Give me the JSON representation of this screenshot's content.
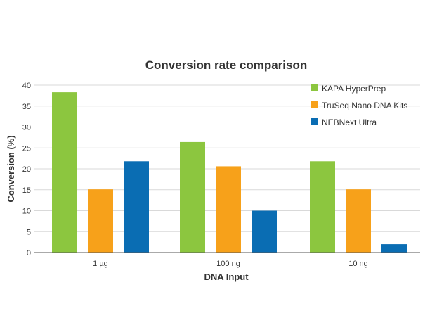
{
  "chart_data": {
    "type": "bar",
    "title": "Conversion rate comparison",
    "xlabel": "DNA Input",
    "ylabel": "Conversion (%)",
    "categories": [
      "1 µg",
      "100 ng",
      "10 ng"
    ],
    "ylim": [
      0,
      40
    ],
    "yticks": [
      "0",
      "5",
      "10",
      "15",
      "20",
      "25",
      "30",
      "35",
      "40"
    ],
    "grid": true,
    "legend_position": "top-right",
    "series": [
      {
        "name": "KAPA HyperPrep",
        "color": "#8cc63f",
        "values": [
          38.3,
          26.4,
          21.8
        ]
      },
      {
        "name": "TruSeq Nano DNA Kits",
        "color": "#f7a11a",
        "values": [
          15.1,
          20.6,
          15.1
        ]
      },
      {
        "name": "NEBNext Ultra",
        "color": "#0a6db3",
        "values": [
          21.8,
          10.0,
          2.0
        ]
      }
    ]
  }
}
